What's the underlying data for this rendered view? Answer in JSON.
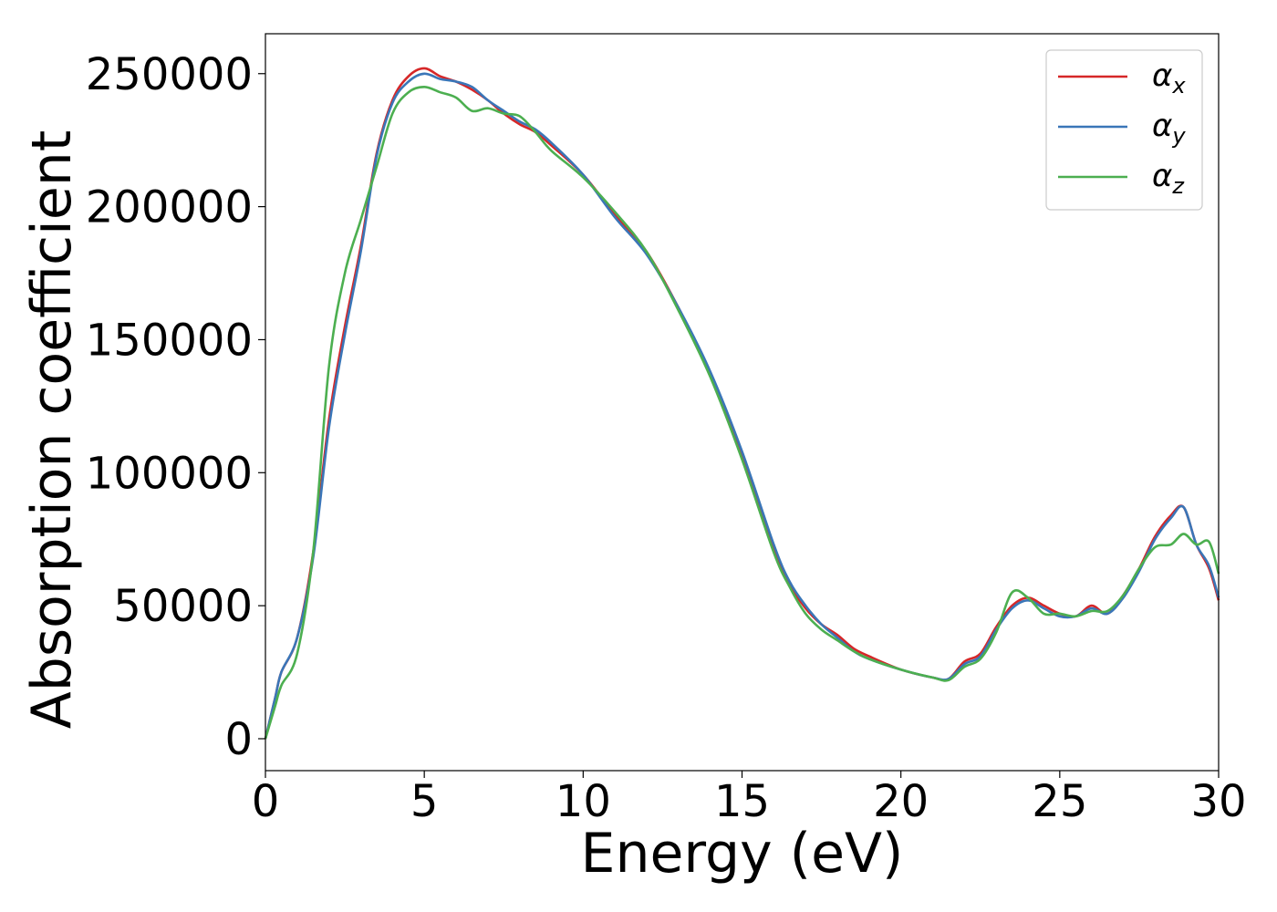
{
  "chart_data": {
    "type": "line",
    "title": "",
    "xlabel": "Energy (eV)",
    "ylabel": "Absorption coefficient",
    "xlim": [
      0,
      30
    ],
    "ylim": [
      -12000,
      265000
    ],
    "xticks": [
      0,
      5,
      10,
      15,
      20,
      25,
      30
    ],
    "xtick_labels": [
      "0",
      "5",
      "10",
      "15",
      "20",
      "25",
      "30"
    ],
    "yticks": [
      0,
      50000,
      100000,
      150000,
      200000,
      250000
    ],
    "ytick_labels": [
      "0",
      "50000",
      "100000",
      "150000",
      "200000",
      "250000"
    ],
    "grid": false,
    "legend_position": "top-right",
    "series": [
      {
        "name": "α",
        "sub": "x",
        "color": "#d62728",
        "points": [
          [
            0,
            0
          ],
          [
            0.3,
            15000
          ],
          [
            0.5,
            25000
          ],
          [
            1.0,
            38000
          ],
          [
            1.5,
            70000
          ],
          [
            2.0,
            120000
          ],
          [
            2.5,
            155000
          ],
          [
            3.0,
            185000
          ],
          [
            3.5,
            220000
          ],
          [
            4.0,
            240000
          ],
          [
            4.5,
            249000
          ],
          [
            5.0,
            252000
          ],
          [
            5.5,
            249000
          ],
          [
            6.0,
            247000
          ],
          [
            6.5,
            244000
          ],
          [
            7.0,
            240000
          ],
          [
            7.5,
            235000
          ],
          [
            8.0,
            231000
          ],
          [
            8.5,
            228000
          ],
          [
            9.0,
            223000
          ],
          [
            10.0,
            212000
          ],
          [
            11.0,
            197000
          ],
          [
            12.0,
            183000
          ],
          [
            13.0,
            162000
          ],
          [
            14.0,
            137000
          ],
          [
            15.0,
            107000
          ],
          [
            16.0,
            72000
          ],
          [
            16.5,
            58000
          ],
          [
            17.0,
            49000
          ],
          [
            17.5,
            43000
          ],
          [
            18.0,
            39000
          ],
          [
            18.5,
            34000
          ],
          [
            19.0,
            31000
          ],
          [
            20.0,
            26000
          ],
          [
            21.0,
            23000
          ],
          [
            21.5,
            22500
          ],
          [
            22.0,
            29000
          ],
          [
            22.5,
            32000
          ],
          [
            23.0,
            42000
          ],
          [
            23.5,
            50000
          ],
          [
            24.0,
            53000
          ],
          [
            24.5,
            50000
          ],
          [
            25.0,
            47000
          ],
          [
            25.5,
            46000
          ],
          [
            26.0,
            50000
          ],
          [
            26.5,
            47000
          ],
          [
            27.0,
            54000
          ],
          [
            27.5,
            64000
          ],
          [
            28.0,
            76000
          ],
          [
            28.5,
            84000
          ],
          [
            28.9,
            87000
          ],
          [
            29.3,
            73000
          ],
          [
            29.7,
            64000
          ],
          [
            30.0,
            52000
          ]
        ]
      },
      {
        "name": "α",
        "sub": "y",
        "color": "#3a76b8",
        "points": [
          [
            0,
            0
          ],
          [
            0.3,
            15000
          ],
          [
            0.5,
            25000
          ],
          [
            1.0,
            38000
          ],
          [
            1.5,
            68000
          ],
          [
            2.0,
            117000
          ],
          [
            2.5,
            152000
          ],
          [
            3.0,
            183000
          ],
          [
            3.5,
            219000
          ],
          [
            4.0,
            239000
          ],
          [
            4.5,
            247000
          ],
          [
            5.0,
            250000
          ],
          [
            5.5,
            248000
          ],
          [
            6.0,
            247000
          ],
          [
            6.5,
            245000
          ],
          [
            7.0,
            240000
          ],
          [
            7.5,
            236000
          ],
          [
            8.0,
            232000
          ],
          [
            8.5,
            229000
          ],
          [
            9.0,
            224000
          ],
          [
            10.0,
            212000
          ],
          [
            11.0,
            196000
          ],
          [
            12.0,
            182000
          ],
          [
            13.0,
            162000
          ],
          [
            14.0,
            138000
          ],
          [
            15.0,
            108000
          ],
          [
            16.0,
            73000
          ],
          [
            16.5,
            59000
          ],
          [
            17.0,
            50000
          ],
          [
            17.5,
            43000
          ],
          [
            18.0,
            38000
          ],
          [
            18.5,
            33000
          ],
          [
            19.0,
            30000
          ],
          [
            20.0,
            26000
          ],
          [
            21.0,
            23000
          ],
          [
            21.5,
            22500
          ],
          [
            22.0,
            28000
          ],
          [
            22.5,
            31000
          ],
          [
            23.0,
            41000
          ],
          [
            23.5,
            49000
          ],
          [
            24.0,
            52000
          ],
          [
            24.5,
            49000
          ],
          [
            25.0,
            46000
          ],
          [
            25.5,
            46000
          ],
          [
            26.0,
            49000
          ],
          [
            26.5,
            47000
          ],
          [
            27.0,
            53000
          ],
          [
            27.5,
            63000
          ],
          [
            28.0,
            75000
          ],
          [
            28.5,
            83000
          ],
          [
            28.9,
            87000
          ],
          [
            29.3,
            73000
          ],
          [
            29.7,
            65000
          ],
          [
            30.0,
            53000
          ]
        ]
      },
      {
        "name": "α",
        "sub": "z",
        "color": "#4caf50",
        "points": [
          [
            0,
            0
          ],
          [
            0.3,
            12000
          ],
          [
            0.5,
            20000
          ],
          [
            1.0,
            32000
          ],
          [
            1.5,
            70000
          ],
          [
            2.0,
            140000
          ],
          [
            2.5,
            175000
          ],
          [
            3.0,
            195000
          ],
          [
            3.5,
            215000
          ],
          [
            4.0,
            235000
          ],
          [
            4.5,
            243000
          ],
          [
            5.0,
            245000
          ],
          [
            5.5,
            243000
          ],
          [
            6.0,
            241000
          ],
          [
            6.5,
            236000
          ],
          [
            7.0,
            237000
          ],
          [
            7.5,
            235000
          ],
          [
            8.0,
            234000
          ],
          [
            8.5,
            228000
          ],
          [
            9.0,
            221000
          ],
          [
            10.0,
            211000
          ],
          [
            11.0,
            198000
          ],
          [
            12.0,
            183000
          ],
          [
            13.0,
            161000
          ],
          [
            14.0,
            136000
          ],
          [
            15.0,
            105000
          ],
          [
            16.0,
            70000
          ],
          [
            16.5,
            57000
          ],
          [
            17.0,
            47000
          ],
          [
            17.5,
            41000
          ],
          [
            18.0,
            37000
          ],
          [
            18.5,
            33000
          ],
          [
            19.0,
            30000
          ],
          [
            20.0,
            26000
          ],
          [
            21.0,
            23000
          ],
          [
            21.5,
            22000
          ],
          [
            22.0,
            27000
          ],
          [
            22.5,
            30000
          ],
          [
            23.0,
            40000
          ],
          [
            23.5,
            55000
          ],
          [
            24.0,
            53000
          ],
          [
            24.5,
            47000
          ],
          [
            25.0,
            47000
          ],
          [
            25.5,
            46000
          ],
          [
            26.0,
            48000
          ],
          [
            26.5,
            48000
          ],
          [
            27.0,
            54000
          ],
          [
            27.5,
            64000
          ],
          [
            28.0,
            72000
          ],
          [
            28.5,
            73000
          ],
          [
            28.9,
            77000
          ],
          [
            29.3,
            73000
          ],
          [
            29.7,
            74000
          ],
          [
            30.0,
            62000
          ]
        ]
      }
    ]
  }
}
